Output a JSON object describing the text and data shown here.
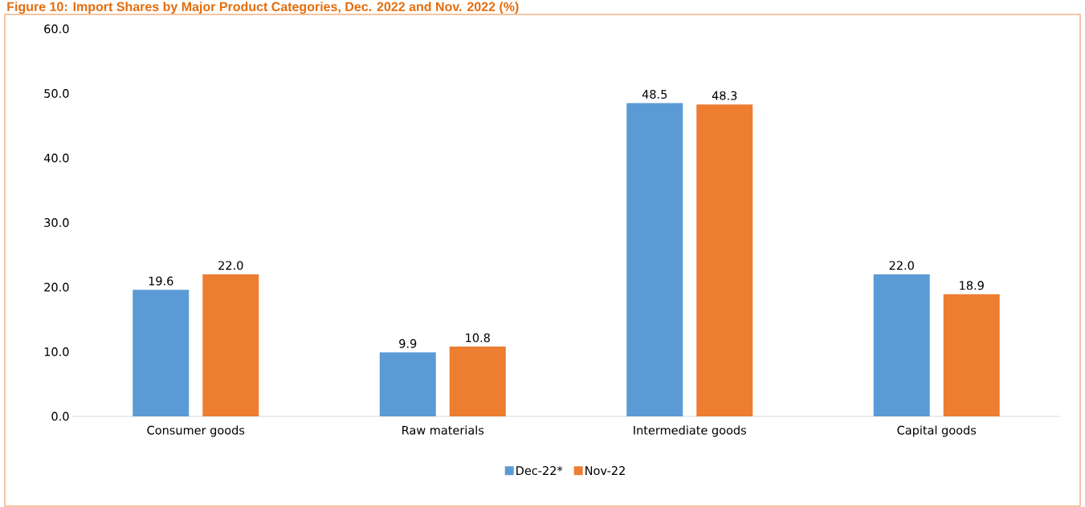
{
  "chart_data": {
    "type": "bar",
    "title": "Figure 10: Import Shares by Major Product Categories, Dec. 2022 and Nov. 2022 (%)",
    "categories": [
      "Consumer goods",
      "Raw materials",
      "Intermediate goods",
      "Capital goods"
    ],
    "series": [
      {
        "name": "Dec-22*",
        "color": "#5b9bd5",
        "values": [
          19.6,
          9.9,
          48.5,
          22.0
        ],
        "value_labels": [
          "19.6",
          "9.9",
          "48.5",
          "22.0"
        ]
      },
      {
        "name": "Nov-22",
        "color": "#ed7d31",
        "values": [
          22.0,
          10.8,
          48.3,
          18.9
        ],
        "value_labels": [
          "22.0",
          "10.8",
          "48.3",
          "18.9"
        ]
      }
    ],
    "ylim": [
      0,
      60
    ],
    "yticks": [
      {
        "value": 0,
        "label": "0.0"
      },
      {
        "value": 10,
        "label": "10.0"
      },
      {
        "value": 20,
        "label": "20.0"
      },
      {
        "value": 30,
        "label": "30.0"
      },
      {
        "value": 40,
        "label": "40.0"
      },
      {
        "value": 50,
        "label": "50.0"
      },
      {
        "value": 60,
        "label": "60.0"
      }
    ],
    "legend": "bottom"
  }
}
